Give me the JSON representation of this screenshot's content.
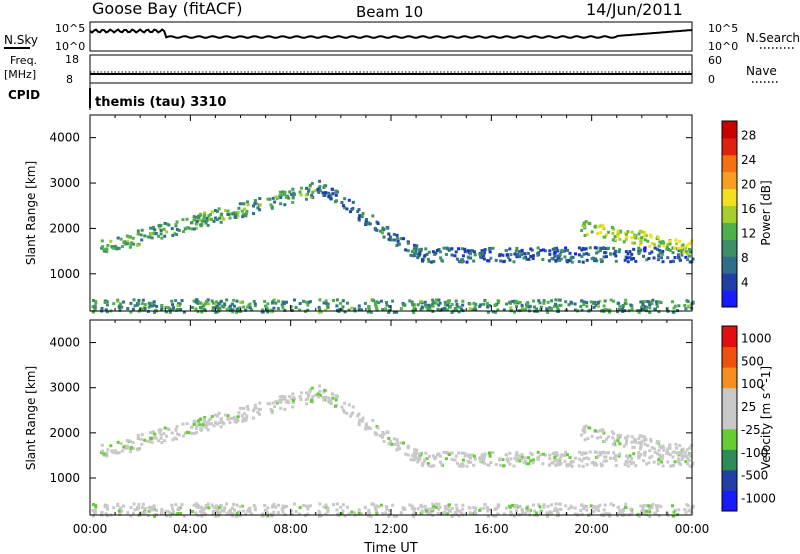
{
  "header": {
    "station": "Goose Bay (fitACF)",
    "beam": "Beam 10",
    "date": "14/Jun/2011"
  },
  "top_panels": {
    "nsky_label": "N.Sky",
    "nsky_ticks": [
      "10^5",
      "10^0"
    ],
    "nsearch_label": "N.Search",
    "nsearch_ticks": [
      "10^5",
      "10^0"
    ],
    "freq_label": "Freq.",
    "freq_unit": "[MHz]",
    "freq_ticks": [
      "18",
      "8"
    ],
    "nave_label": "Nave",
    "nave_ticks": [
      "60",
      "0"
    ],
    "cpid_label": "CPID",
    "cpid_value": "themis (tau) 3310"
  },
  "colors": {
    "power_scale": [
      "#1a1aff",
      "#1f3fa6",
      "#2e6e8a",
      "#3f8f66",
      "#4fb04a",
      "#a6cf2e",
      "#f0e020",
      "#f5a020",
      "#f57010",
      "#e02010",
      "#c80000"
    ],
    "velocity_scale": [
      "#e01010",
      "#f05010",
      "#f59020",
      "#c8c8c8",
      "#c8c8c8",
      "#66cc33",
      "#2e8b57",
      "#1f3fa6",
      "#1a1aff"
    ],
    "ground_scatter": "#c8c8c8"
  },
  "chart_data": [
    {
      "type": "heatmap",
      "title": "",
      "xlabel": "",
      "ylabel": "Slant Range [km]",
      "colorbar_label": "Power [dB]",
      "colorbar_ticks": [
        "4",
        "8",
        "12",
        "16",
        "20",
        "24",
        "28"
      ],
      "y_ticks": [
        "1000",
        "2000",
        "3000",
        "4000"
      ],
      "ylim": [
        180,
        4500
      ],
      "xlim_hours": [
        0,
        24
      ],
      "scatter_bands": [
        {
          "start_h": 0.4,
          "end_h": 9.0,
          "range_start": 1600,
          "range_end": 2900,
          "level": 10
        },
        {
          "start_h": 9.0,
          "end_h": 13.0,
          "range_start": 3000,
          "range_end": 1500,
          "level": 6
        },
        {
          "start_h": 13.0,
          "end_h": 24.0,
          "range_start": 1450,
          "range_end": 1450,
          "level": 5
        },
        {
          "start_h": 19.5,
          "end_h": 24.0,
          "range_start": 2050,
          "range_end": 1600,
          "level": 14
        },
        {
          "start_h": 0.0,
          "end_h": 24.0,
          "range_start": 300,
          "range_end": 300,
          "level": 9
        }
      ]
    },
    {
      "type": "heatmap",
      "title": "",
      "xlabel": "Time UT",
      "ylabel": "Slant Range [km]",
      "colorbar_label": "Velocity [m s^-1]",
      "colorbar_ticks": [
        "1000",
        "500",
        "100",
        "25",
        "-25",
        "-100",
        "-500",
        "-1000"
      ],
      "y_ticks": [
        "1000",
        "2000",
        "3000",
        "4000"
      ],
      "x_ticks": [
        "00:00",
        "04:00",
        "08:00",
        "12:00",
        "16:00",
        "20:00",
        "00:00"
      ],
      "ylim": [
        180,
        4500
      ],
      "xlim_hours": [
        0,
        24
      ]
    }
  ]
}
